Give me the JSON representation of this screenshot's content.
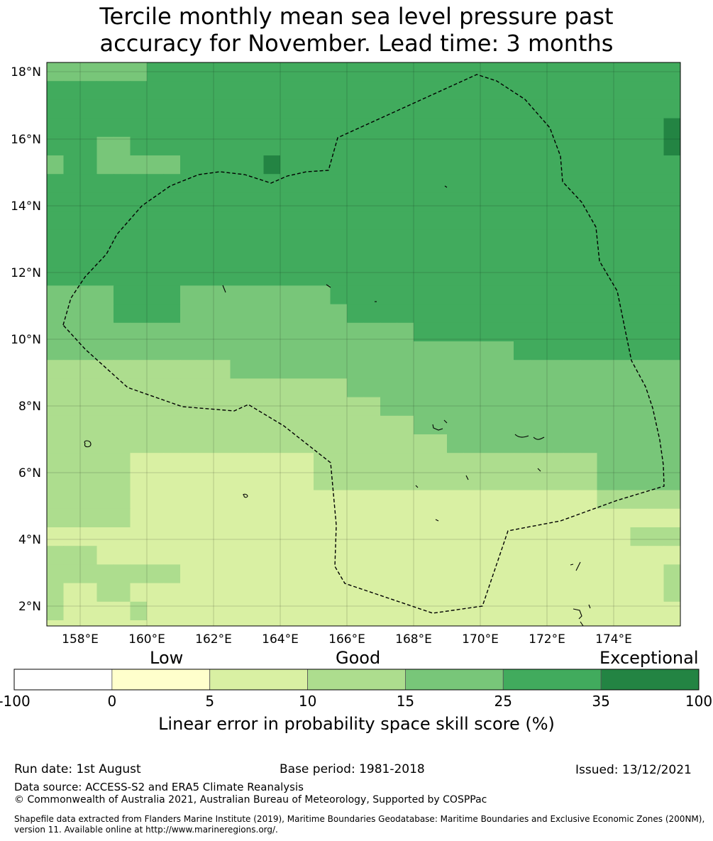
{
  "title_line1": "Tercile monthly mean sea level pressure past",
  "title_line2": "accuracy for November. Lead time: 3 months",
  "map": {
    "lat_ticks": [
      "18°N",
      "16°N",
      "14°N",
      "12°N",
      "10°N",
      "8°N",
      "6°N",
      "4°N",
      "2°N"
    ],
    "lon_ticks": [
      "158°E",
      "160°E",
      "162°E",
      "164°E",
      "166°E",
      "168°E",
      "170°E",
      "172°E",
      "174°E"
    ],
    "levels": [
      "#ffffcc",
      "#d9f0a3",
      "#addd8e",
      "#78c679",
      "#41ab5d",
      "#238443"
    ]
  },
  "colorbar": {
    "qualitative": {
      "low": "Low",
      "good": "Good",
      "exceptional": "Exceptional"
    },
    "bounds": [
      "-100",
      "0",
      "5",
      "10",
      "15",
      "25",
      "35",
      "100"
    ],
    "colors": [
      "#ffffff",
      "#ffffcc",
      "#d9f0a3",
      "#addd8e",
      "#78c679",
      "#41ab5d",
      "#238443"
    ],
    "label": "Linear error in probability space skill score (%)"
  },
  "footer": {
    "run_date": "Run date: 1st August",
    "base_period": "Base period: 1981-2018",
    "issued": "Issued: 13/12/2021",
    "data_source": "Data source: ACCESS-S2 and ERA5 Climate Reanalysis",
    "copyright": "© Commonwealth of Australia 2021, Australian Bureau of Meteorology, Supported by COSPPac",
    "shapefile_line1": "Shapefile data extracted from Flanders Marine Institute (2019), Maritime Boundaries Geodatabase: Maritime Boundaries and Exclusive Economic Zones (200NM),",
    "shapefile_line2": "version 11. Available online at http://www.marineregions.org/."
  }
}
